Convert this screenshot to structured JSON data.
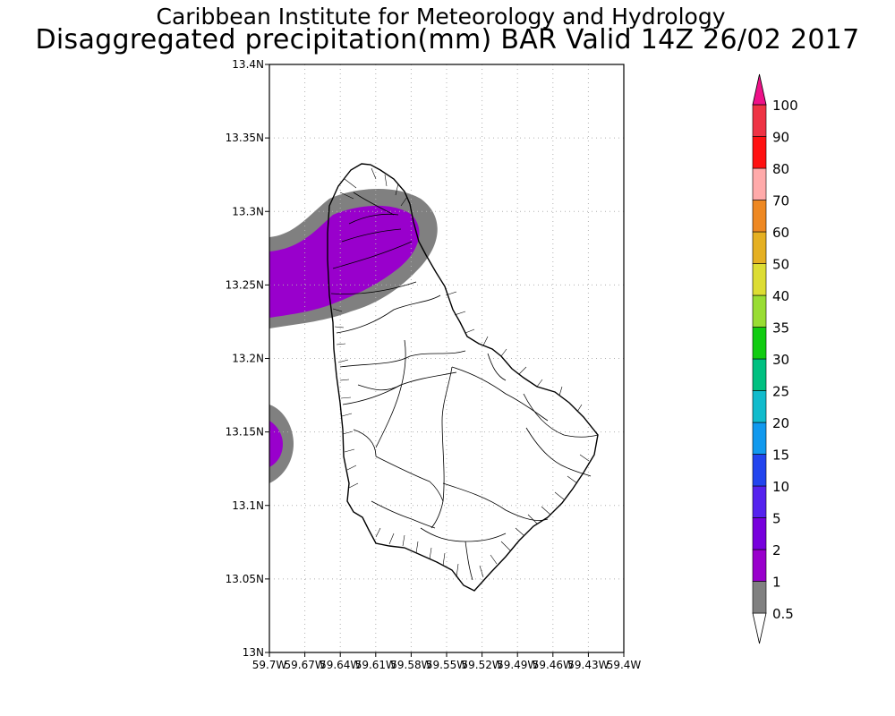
{
  "title": {
    "line1": "Caribbean Institute for Meteorology and Hydrology",
    "line2": "Disaggregated precipitation(mm) BAR Valid 14Z 26/02 2017"
  },
  "map": {
    "region": "Barbados",
    "lon_range": [
      -59.7,
      -59.4
    ],
    "lat_range": [
      13.0,
      13.4
    ],
    "grid": true,
    "lat_ticks": [
      {
        "value": 13.4,
        "label": "13.4N"
      },
      {
        "value": 13.35,
        "label": "13.35N"
      },
      {
        "value": 13.3,
        "label": "13.3N"
      },
      {
        "value": 13.25,
        "label": "13.25N"
      },
      {
        "value": 13.2,
        "label": "13.2N"
      },
      {
        "value": 13.15,
        "label": "13.15N"
      },
      {
        "value": 13.1,
        "label": "13.1N"
      },
      {
        "value": 13.05,
        "label": "13.05N"
      },
      {
        "value": 13.0,
        "label": "13N"
      }
    ],
    "lon_ticks": [
      {
        "value": -59.7,
        "label": "59.7W"
      },
      {
        "value": -59.67,
        "label": "59.67W"
      },
      {
        "value": -59.64,
        "label": "59.64W"
      },
      {
        "value": -59.61,
        "label": "59.61W"
      },
      {
        "value": -59.58,
        "label": "59.58W"
      },
      {
        "value": -59.55,
        "label": "59.55W"
      },
      {
        "value": -59.52,
        "label": "59.52W"
      },
      {
        "value": -59.49,
        "label": "59.49W"
      },
      {
        "value": -59.46,
        "label": "59.46W"
      },
      {
        "value": -59.43,
        "label": "59.43W"
      },
      {
        "value": -59.4,
        "label": "59.4W"
      }
    ]
  },
  "colorbar": {
    "unit": "mm",
    "levels": [
      {
        "label": "0.5",
        "color": "#ffffff"
      },
      {
        "label": "1",
        "color": "#808080"
      },
      {
        "label": "2",
        "color": "#9900cc"
      },
      {
        "label": "5",
        "color": "#7700dd"
      },
      {
        "label": "10",
        "color": "#5522ee"
      },
      {
        "label": "15",
        "color": "#2244ee"
      },
      {
        "label": "20",
        "color": "#1199ee"
      },
      {
        "label": "25",
        "color": "#11bbcc"
      },
      {
        "label": "30",
        "color": "#00c080"
      },
      {
        "label": "35",
        "color": "#11cc11"
      },
      {
        "label": "40",
        "color": "#99dd33"
      },
      {
        "label": "50",
        "color": "#dddd33"
      },
      {
        "label": "60",
        "color": "#e5b022"
      },
      {
        "label": "70",
        "color": "#ee8822"
      },
      {
        "label": "80",
        "color": "#ffaaaa"
      },
      {
        "label": "90",
        "color": "#ff1111"
      },
      {
        "label": "100",
        "color": "#ee3344"
      }
    ],
    "top_arrow_color": "#ee1188",
    "bottom_arrow_color": "#ffffff"
  },
  "precip_colors": {
    "gray": "#808080",
    "purple": "#9900cc"
  }
}
